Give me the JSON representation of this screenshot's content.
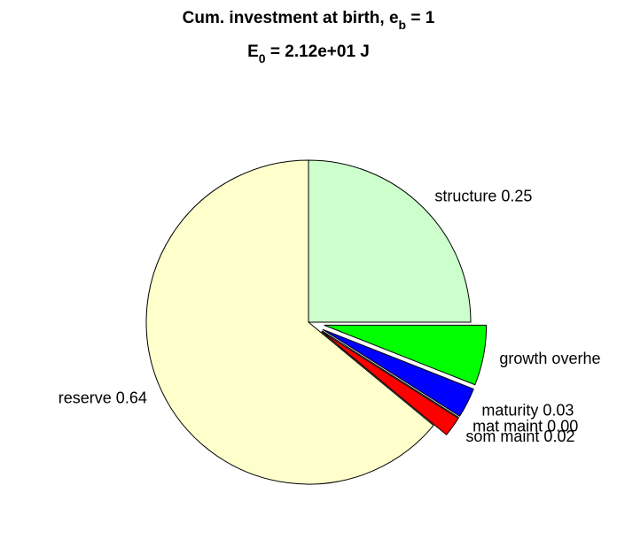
{
  "chart_data": {
    "type": "pie",
    "title": [
      "Cum. investment at birth, e",
      "b",
      " = 1"
    ],
    "subtitle": [
      "E",
      "0",
      " = 2.12e+01 J"
    ],
    "labels": [
      "structure 0.25",
      "growth overhe",
      "maturity 0.03",
      "mat maint 0.00",
      "som maint 0.02",
      "reserve 0.64"
    ],
    "values": [
      0.25,
      0.06,
      0.03,
      0.0,
      0.02,
      0.64
    ],
    "colors": [
      "#ccffcc",
      "#00ff00",
      "#0000ff",
      "#00ffff",
      "#ff0000",
      "#ffffcc"
    ],
    "explode": [
      false,
      true,
      true,
      true,
      true,
      false
    ]
  }
}
